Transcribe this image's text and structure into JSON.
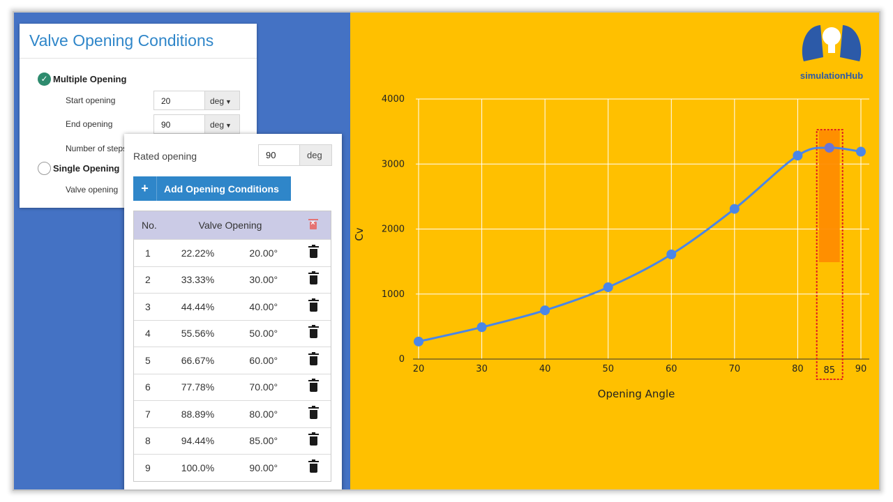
{
  "conditions_panel": {
    "title": "Valve Opening Conditions",
    "multiple_opening_label": "Multiple Opening",
    "start_opening_label": "Start opening",
    "start_opening_value": "20",
    "end_opening_label": "End opening",
    "end_opening_value": "90",
    "number_of_steps_label": "Number of steps",
    "single_opening_label": "Single Opening",
    "valve_opening_label": "Valve opening",
    "unit": "deg",
    "selected_mode": "Multiple Opening"
  },
  "openings_panel": {
    "rated_opening_label": "Rated opening",
    "rated_opening_value": "90",
    "rated_opening_unit": "deg",
    "add_button_label": "Add Opening Conditions",
    "add_button_icon": "+",
    "table": {
      "headers": [
        "No.",
        "Valve Opening"
      ],
      "rows": [
        {
          "no": "1",
          "percent": "22.22%",
          "degrees": "20.00°"
        },
        {
          "no": "2",
          "percent": "33.33%",
          "degrees": "30.00°"
        },
        {
          "no": "3",
          "percent": "44.44%",
          "degrees": "40.00°"
        },
        {
          "no": "4",
          "percent": "55.56%",
          "degrees": "50.00°"
        },
        {
          "no": "5",
          "percent": "66.67%",
          "degrees": "60.00°"
        },
        {
          "no": "6",
          "percent": "77.78%",
          "degrees": "70.00°"
        },
        {
          "no": "7",
          "percent": "88.89%",
          "degrees": "80.00°"
        },
        {
          "no": "8",
          "percent": "94.44%",
          "degrees": "85.00°"
        },
        {
          "no": "9",
          "percent": "100.0%",
          "degrees": "90.00°"
        }
      ]
    }
  },
  "logo": {
    "text": "simulationHub"
  },
  "colors": {
    "chart_background": "#ffc000",
    "left_background": "#4472c4",
    "accent_blue": "#2f86c9",
    "series_line": "#4a86e8",
    "highlight": "#ff8c00",
    "highlight_border": "#e02020",
    "success_green": "#2e8b6e"
  },
  "chart_data": {
    "type": "line",
    "title": "",
    "xlabel": "Opening Angle",
    "ylabel": "Cv",
    "x": [
      20,
      30,
      40,
      50,
      60,
      70,
      80,
      85,
      90
    ],
    "xticks": [
      "20",
      "30",
      "40",
      "50",
      "60",
      "70",
      "80",
      "90"
    ],
    "xlim": [
      20,
      90
    ],
    "ylim": [
      0,
      4000
    ],
    "yticks": [
      "0",
      "1000",
      "2000",
      "3000",
      "4000"
    ],
    "series": [
      {
        "values": [
          270,
          490,
          750,
          1105,
          1610,
          2310,
          3130,
          3250,
          3190
        ]
      }
    ],
    "highlight": {
      "x": 85,
      "label": "85"
    },
    "grid": true,
    "legend": "none"
  }
}
